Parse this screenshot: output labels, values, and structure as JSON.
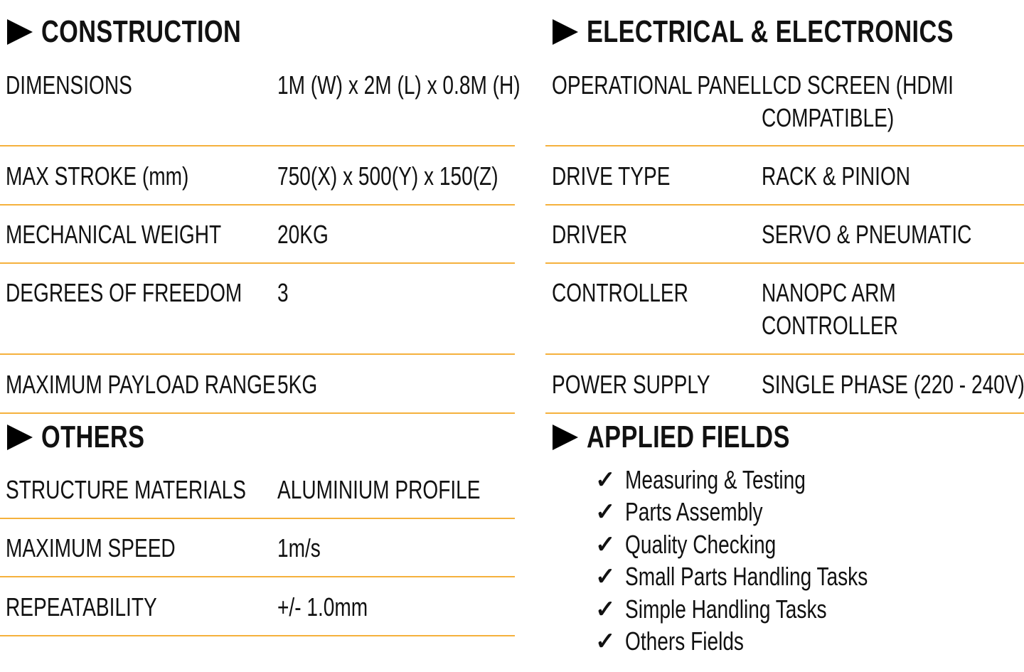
{
  "accent_color": "#f5b13d",
  "construction": {
    "title": "CONSTRUCTION",
    "rows": [
      {
        "label": "DIMENSIONS",
        "value": "1M (W) x 2M (L) x 0.8M (H)"
      },
      {
        "label": "MAX STROKE (mm)",
        "value": "750(X) x 500(Y) x 150(Z)"
      },
      {
        "label": "MECHANICAL WEIGHT",
        "value": "20KG"
      },
      {
        "label": "DEGREES OF FREEDOM",
        "value": "3"
      },
      {
        "label": "MAXIMUM PAYLOAD RANGE",
        "value": "5KG"
      }
    ]
  },
  "others": {
    "title": "OTHERS",
    "rows": [
      {
        "label": "STRUCTURE MATERIALS",
        "value": "ALUMINIUM PROFILE"
      },
      {
        "label": "MAXIMUM SPEED",
        "value": "1m/s"
      },
      {
        "label": "REPEATABILITY",
        "value": "+/- 1.0mm"
      }
    ]
  },
  "electrical": {
    "title": "ELECTRICAL & ELECTRONICS",
    "rows": [
      {
        "label": "OPERATIONAL PANEL",
        "value": "LCD SCREEN (HDMI",
        "value2": "COMPATIBLE)"
      },
      {
        "label": "DRIVE TYPE",
        "value": "RACK & PINION"
      },
      {
        "label": "DRIVER",
        "value": "SERVO & PNEUMATIC"
      },
      {
        "label": "CONTROLLER",
        "value": "NANOPC ARM",
        "value2": "CONTROLLER"
      },
      {
        "label": "POWER SUPPLY",
        "value": "SINGLE PHASE (220 - 240V)"
      }
    ]
  },
  "applied_fields": {
    "title": "APPLIED FIELDS",
    "check_icon": "check-icon",
    "items": [
      "Measuring & Testing",
      "Parts Assembly",
      "Quality Checking",
      "Small Parts Handling Tasks",
      "Simple Handling Tasks",
      "Others Fields"
    ]
  }
}
